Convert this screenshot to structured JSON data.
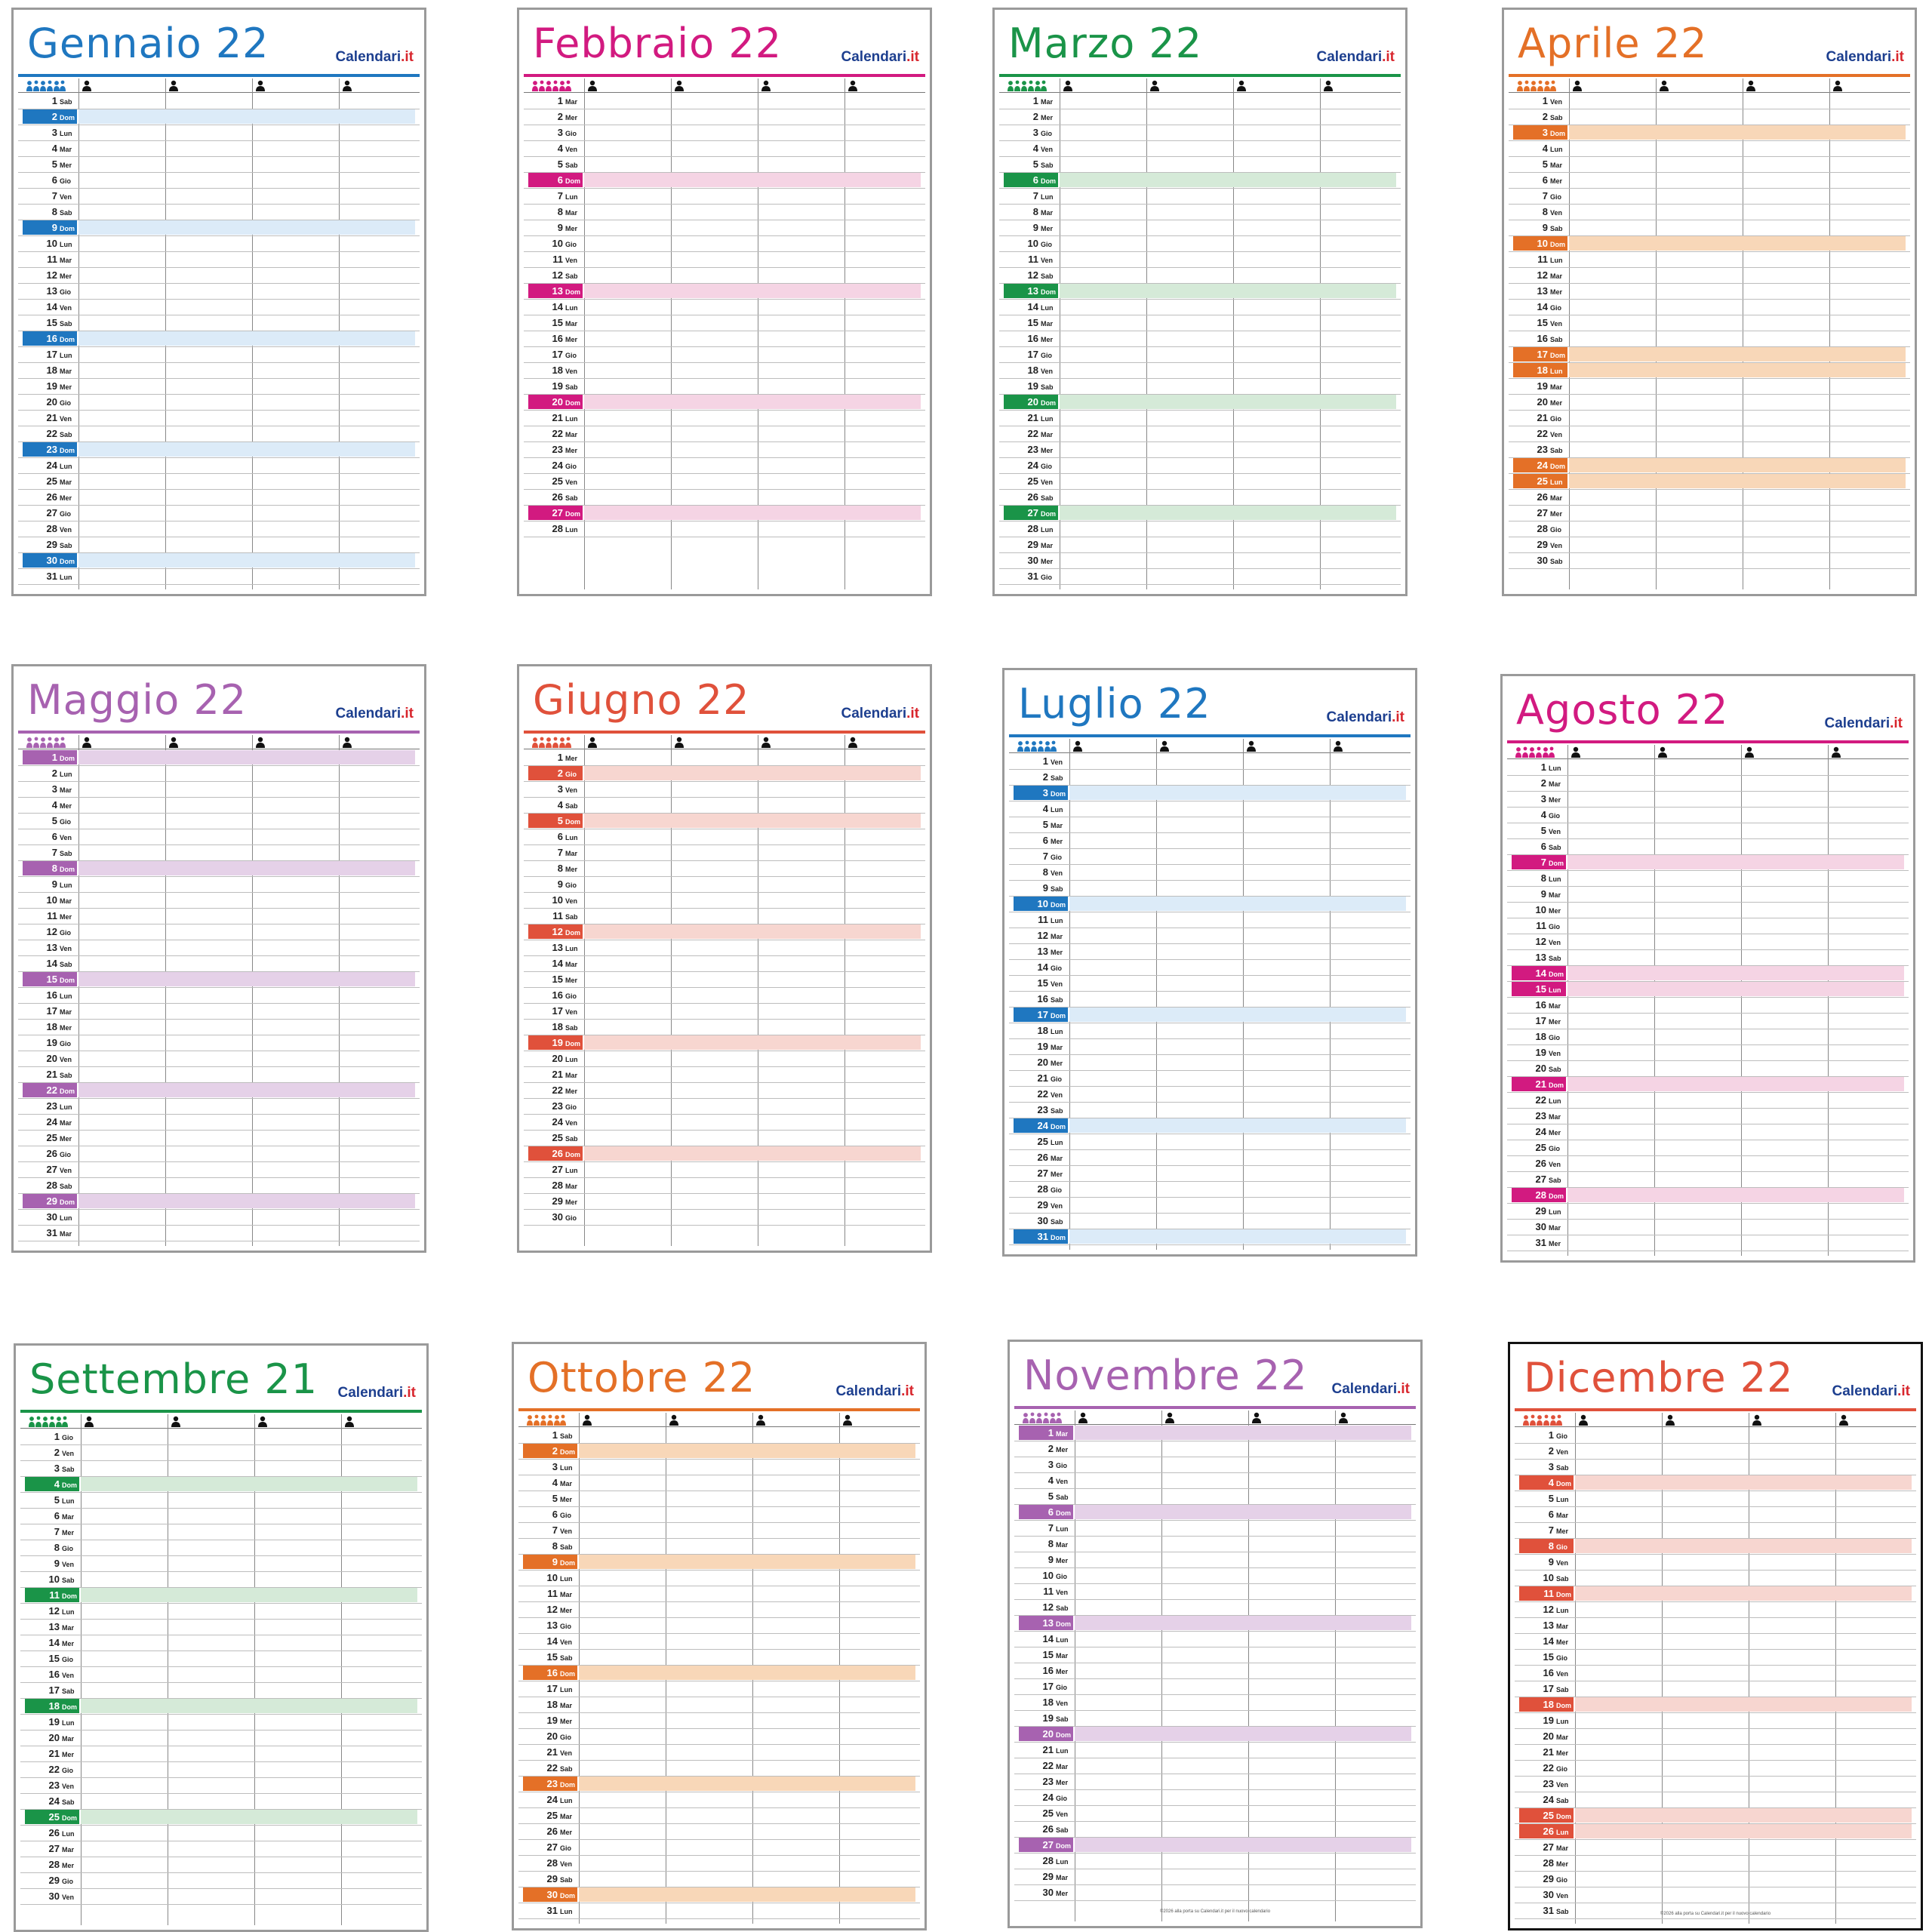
{
  "brand": {
    "name": "Calendari",
    "suffix": ".it"
  },
  "footer_text": "©2026 alla porta su Calendari.it per il nuovo calendario",
  "months": [
    {
      "title": "Gennaio 22",
      "color": "#1f77c0",
      "light": "#dcebf8",
      "first": "Sab",
      "days": 31,
      "extra": []
    },
    {
      "title": "Febbraio 22",
      "color": "#d21a80",
      "light": "#f5d4e4",
      "first": "Mar",
      "days": 28,
      "extra": []
    },
    {
      "title": "Marzo 22",
      "color": "#1a9448",
      "light": "#d5ead8",
      "first": "Mar",
      "days": 31,
      "extra": []
    },
    {
      "title": "Aprile 22",
      "color": "#e47027",
      "light": "#f8d7b8",
      "first": "Ven",
      "days": 30,
      "extra": [
        18,
        25
      ]
    },
    {
      "title": "Maggio 22",
      "color": "#a762b0",
      "light": "#e5d1e8",
      "first": "Dom",
      "days": 31,
      "extra": []
    },
    {
      "title": "Giugno 22",
      "color": "#e0513b",
      "light": "#f7d6d0",
      "first": "Mer",
      "days": 30,
      "extra": [
        2
      ]
    },
    {
      "title": "Luglio 22",
      "color": "#1f77c0",
      "light": "#dcebf8",
      "first": "Ven",
      "days": 31,
      "extra": []
    },
    {
      "title": "Agosto 22",
      "color": "#d21a80",
      "light": "#f5d4e4",
      "first": "Lun",
      "days": 31,
      "extra": [
        15
      ]
    },
    {
      "title": "Settembre 21",
      "color": "#1a9448",
      "light": "#d5ead8",
      "first": "Gio",
      "days": 30,
      "extra": []
    },
    {
      "title": "Ottobre 22",
      "color": "#e47027",
      "light": "#f8d7b8",
      "first": "Sab",
      "days": 31,
      "extra": []
    },
    {
      "title": "Novembre 22",
      "color": "#a762b0",
      "light": "#e5d1e8",
      "first": "Mar",
      "days": 30,
      "extra": [
        1
      ]
    },
    {
      "title": "Dicembre 22",
      "color": "#e0513b",
      "light": "#f7d6d0",
      "first": "Gio",
      "days": 31,
      "extra": [
        8,
        26
      ]
    }
  ],
  "weekdays": [
    "Lun",
    "Mar",
    "Mer",
    "Gio",
    "Ven",
    "Sab",
    "Dom"
  ]
}
